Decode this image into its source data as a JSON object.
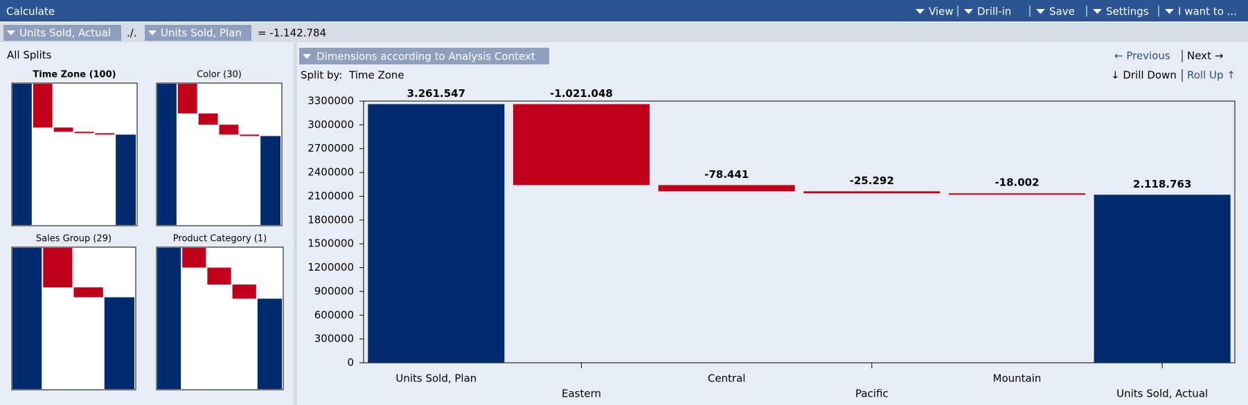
{
  "toolbar": {
    "title": "Calculate",
    "menu": [
      "View",
      "Drill-in",
      "Save",
      "Settings",
      "I want to ..."
    ]
  },
  "formula": {
    "left": "Units Sold, Actual",
    "operator": "./.",
    "right": "Units Sold, Plan",
    "result": "= -1.142.784"
  },
  "splits": {
    "title": "All Splits",
    "thumbnails": [
      "Time Zone (100)",
      "Color (30)",
      "Sales Group (29)",
      "Product Category (1)"
    ]
  },
  "panel": {
    "heading": "Dimensions according to Analysis Context",
    "split_label": "Split by:",
    "split_value": "Time Zone",
    "previous": "← Previous",
    "next": "Next →",
    "drill_down": "↓ Drill Down",
    "roll_up": "Roll Up ↑"
  },
  "chart_data": {
    "type": "waterfall",
    "categories": [
      "Units Sold, Plan",
      "Eastern",
      "Central",
      "Pacific",
      "Mountain",
      "Units Sold, Actual"
    ],
    "values": [
      3261547,
      -1021048,
      -78441,
      -25292,
      -18002,
      2118763
    ],
    "value_labels": [
      "3.261.547",
      "-1.021.048",
      "-78.441",
      "-25.292",
      "-18.002",
      "2.118.763"
    ],
    "total_color": "#002b6e",
    "decrease_color": "#c0001a",
    "ylim": [
      0,
      3300000
    ],
    "yticks": [
      0,
      300000,
      600000,
      900000,
      1200000,
      1500000,
      1800000,
      2100000,
      2400000,
      2700000,
      3000000,
      3300000
    ]
  }
}
